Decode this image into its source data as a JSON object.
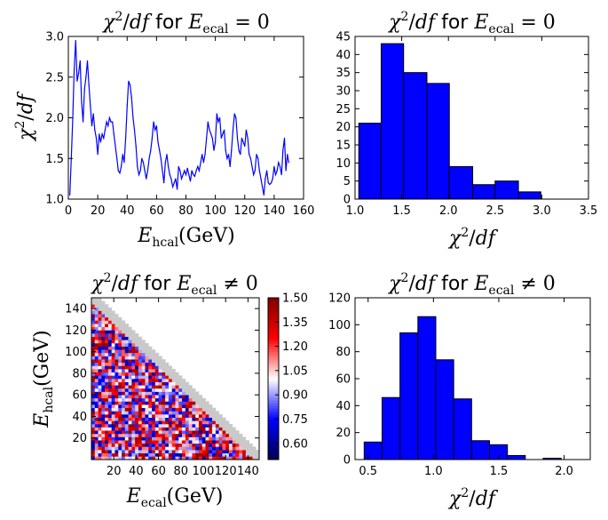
{
  "colors": {
    "series": "#0000ff",
    "bar_fill": "#0000ff",
    "bar_edge": "#000000"
  },
  "chart_data": [
    {
      "type": "line",
      "title": "χ²/df for E_ecal = 0",
      "xlabel": "E_hcal(GeV)",
      "ylabel": "χ²/df",
      "xlim": [
        0,
        160
      ],
      "ylim": [
        1.0,
        3.0
      ],
      "xticks": [
        0,
        20,
        40,
        60,
        80,
        100,
        120,
        140,
        160
      ],
      "yticks": [
        1.0,
        1.5,
        2.0,
        2.5,
        3.0
      ],
      "xtick_labels": [
        "0",
        "20",
        "40",
        "60",
        "80",
        "100",
        "120",
        "140",
        "160"
      ],
      "ytick_labels": [
        "1.0",
        "1.5",
        "2.0",
        "2.5",
        "3.0"
      ],
      "x": [
        1,
        2,
        3,
        4,
        5,
        6,
        7,
        8,
        9,
        10,
        11,
        12,
        13,
        14,
        15,
        16,
        17,
        18,
        19,
        20,
        21,
        22,
        23,
        24,
        25,
        26,
        27,
        28,
        29,
        30,
        31,
        32,
        33,
        34,
        35,
        36,
        37,
        38,
        39,
        40,
        41,
        42,
        43,
        44,
        45,
        46,
        47,
        48,
        49,
        50,
        51,
        52,
        53,
        54,
        55,
        56,
        57,
        58,
        59,
        60,
        61,
        62,
        63,
        64,
        65,
        66,
        67,
        68,
        69,
        70,
        71,
        72,
        73,
        74,
        75,
        76,
        77,
        78,
        79,
        80,
        81,
        82,
        83,
        84,
        85,
        86,
        87,
        88,
        89,
        90,
        91,
        92,
        93,
        94,
        95,
        96,
        97,
        98,
        99,
        100,
        101,
        102,
        103,
        104,
        105,
        106,
        107,
        108,
        109,
        110,
        111,
        112,
        113,
        114,
        115,
        116,
        117,
        118,
        119,
        120,
        121,
        122,
        123,
        124,
        125,
        126,
        127,
        128,
        129,
        130,
        131,
        132,
        133,
        134,
        135,
        136,
        137,
        138,
        139,
        140,
        141,
        142,
        143,
        144,
        145,
        146,
        147,
        148,
        149,
        150
      ],
      "y": [
        1.05,
        1.5,
        2.0,
        2.6,
        2.95,
        2.45,
        2.55,
        2.7,
        2.2,
        1.95,
        2.35,
        2.5,
        2.7,
        2.4,
        2.15,
        1.9,
        2.05,
        1.85,
        1.75,
        1.55,
        1.8,
        1.7,
        1.8,
        1.75,
        1.85,
        1.95,
        1.9,
        2.0,
        1.95,
        1.95,
        1.8,
        1.65,
        1.5,
        1.35,
        1.32,
        1.4,
        1.55,
        1.45,
        1.75,
        2.15,
        2.45,
        2.4,
        2.25,
        2.0,
        1.85,
        1.65,
        1.4,
        1.3,
        1.35,
        1.5,
        1.45,
        1.35,
        1.25,
        1.35,
        1.5,
        1.6,
        1.75,
        1.95,
        1.85,
        1.9,
        1.7,
        1.6,
        1.5,
        1.35,
        1.2,
        1.45,
        1.55,
        1.4,
        1.3,
        1.25,
        1.15,
        1.2,
        1.25,
        1.12,
        1.4,
        1.35,
        1.25,
        1.3,
        1.35,
        1.3,
        1.38,
        1.3,
        1.22,
        1.35,
        1.3,
        1.28,
        1.35,
        1.4,
        1.35,
        1.45,
        1.55,
        1.45,
        1.55,
        1.75,
        1.95,
        1.85,
        1.8,
        1.75,
        1.6,
        1.7,
        2.05,
        1.95,
        2.0,
        1.75,
        1.8,
        1.85,
        1.6,
        1.5,
        1.55,
        1.4,
        1.6,
        1.85,
        2.05,
        2.0,
        1.75,
        1.6,
        1.55,
        1.75,
        1.7,
        1.65,
        1.85,
        1.75,
        1.55,
        1.5,
        1.4,
        1.3,
        1.35,
        1.55,
        1.5,
        1.35,
        1.25,
        1.15,
        1.05,
        1.25,
        1.35,
        1.2,
        1.18,
        1.2,
        1.25,
        1.4,
        1.3,
        1.35,
        1.45,
        1.4,
        1.3,
        1.6,
        1.75,
        1.35,
        1.55,
        1.45
      ]
    },
    {
      "type": "bar",
      "title": "χ²/df for E_ecal = 0",
      "xlabel": "χ²/df",
      "ylabel": "",
      "xlim": [
        1.0,
        3.5
      ],
      "ylim": [
        0,
        45
      ],
      "xticks": [
        1.0,
        1.5,
        2.0,
        2.5,
        3.0,
        3.5
      ],
      "yticks": [
        0,
        5,
        10,
        15,
        20,
        25,
        30,
        35,
        40,
        45
      ],
      "xtick_labels": [
        "1.0",
        "1.5",
        "2.0",
        "2.5",
        "3.0",
        "3.5"
      ],
      "ytick_labels": [
        "0",
        "5",
        "10",
        "15",
        "20",
        "25",
        "30",
        "35",
        "40",
        "45"
      ],
      "bin_edges": [
        1.04,
        1.28,
        1.52,
        1.77,
        2.01,
        2.26,
        2.5,
        2.75,
        2.99
      ],
      "values": [
        21,
        43,
        35,
        32,
        9,
        4,
        5,
        2
      ]
    },
    {
      "type": "heatmap",
      "title": "χ²/df for E_ecal ≠ 0",
      "xlabel": "E_ecal(GeV)",
      "ylabel": "E_hcal(GeV)",
      "xlim": [
        0,
        150
      ],
      "ylim": [
        0,
        150
      ],
      "xticks": [
        20,
        40,
        60,
        80,
        100,
        120,
        140
      ],
      "yticks": [
        20,
        40,
        60,
        80,
        100,
        120,
        140
      ],
      "xtick_labels": [
        "20",
        "40",
        "60",
        "80",
        "100",
        "120",
        "140"
      ],
      "ytick_labels": [
        "20",
        "40",
        "60",
        "80",
        "100",
        "120",
        "140"
      ],
      "colorbar_range": [
        0.5,
        1.5
      ],
      "colorbar_ticks": [
        0.6,
        0.75,
        0.9,
        1.05,
        1.2,
        1.35,
        1.5
      ],
      "colorbar_tick_labels": [
        "0.60",
        "0.75",
        "0.90",
        "1.05",
        "1.20",
        "1.35",
        "1.50"
      ],
      "colormap": "seismic",
      "region": "lower-left triangle (E_ecal + E_hcal ≤ 150)"
    },
    {
      "type": "bar",
      "title": "χ²/df for E_ecal ≠ 0",
      "xlabel": "χ²/df",
      "ylabel": "",
      "xlim": [
        0.4,
        2.2
      ],
      "ylim": [
        0,
        120
      ],
      "xticks": [
        0.5,
        1.0,
        1.5,
        2.0
      ],
      "yticks": [
        0,
        20,
        40,
        60,
        80,
        100,
        120
      ],
      "xtick_labels": [
        "0.5",
        "1.0",
        "1.5",
        "2.0"
      ],
      "ytick_labels": [
        "0",
        "20",
        "40",
        "60",
        "80",
        "100",
        "120"
      ],
      "bin_edges": [
        0.47,
        0.607,
        0.744,
        0.881,
        1.018,
        1.155,
        1.292,
        1.429,
        1.566,
        1.703,
        1.84,
        1.977
      ],
      "values": [
        13,
        46,
        94,
        106,
        74,
        45,
        14,
        11,
        3,
        0,
        1
      ]
    }
  ]
}
